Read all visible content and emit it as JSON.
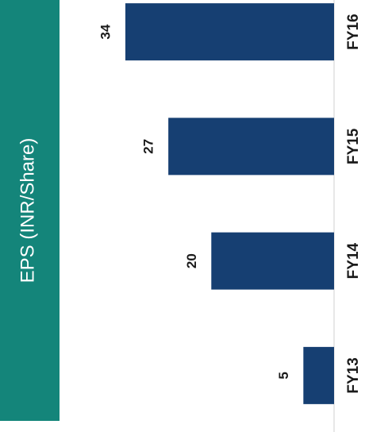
{
  "chart_data": {
    "type": "bar",
    "orientation": "rotated",
    "title": "EPS (INR/Share)",
    "categories": [
      "FY13",
      "FY14",
      "FY15",
      "FY16"
    ],
    "values": [
      5,
      20,
      27,
      34
    ],
    "color": "#163f72"
  }
}
